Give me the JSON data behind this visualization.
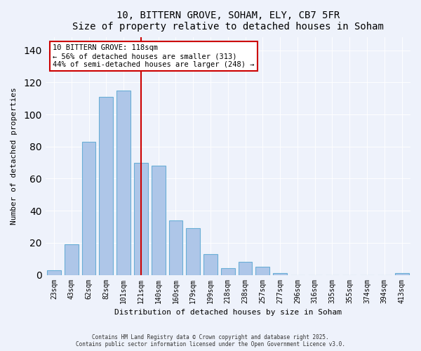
{
  "title": "10, BITTERN GROVE, SOHAM, ELY, CB7 5FR",
  "subtitle": "Size of property relative to detached houses in Soham",
  "xlabel": "Distribution of detached houses by size in Soham",
  "ylabel": "Number of detached properties",
  "bins": [
    "23sqm",
    "43sqm",
    "62sqm",
    "82sqm",
    "101sqm",
    "121sqm",
    "140sqm",
    "160sqm",
    "179sqm",
    "199sqm",
    "218sqm",
    "238sqm",
    "257sqm",
    "277sqm",
    "296sqm",
    "316sqm",
    "335sqm",
    "355sqm",
    "374sqm",
    "394sqm",
    "413sqm"
  ],
  "values": [
    3,
    19,
    83,
    111,
    115,
    70,
    68,
    34,
    29,
    13,
    4,
    8,
    5,
    1,
    0,
    0,
    0,
    0,
    0,
    0,
    1
  ],
  "bar_color": "#aec6e8",
  "bar_edge_color": "#6aaed6",
  "property_line_x": 5,
  "property_line_color": "#cc0000",
  "annotation_text": "10 BITTERN GROVE: 118sqm\n← 56% of detached houses are smaller (313)\n44% of semi-detached houses are larger (248) →",
  "annotation_box_color": "#ffffff",
  "annotation_box_edge_color": "#cc0000",
  "ylim": [
    0,
    148
  ],
  "footnote": "Contains HM Land Registry data © Crown copyright and database right 2025.\nContains public sector information licensed under the Open Government Licence v3.0.",
  "background_color": "#eef2fb"
}
